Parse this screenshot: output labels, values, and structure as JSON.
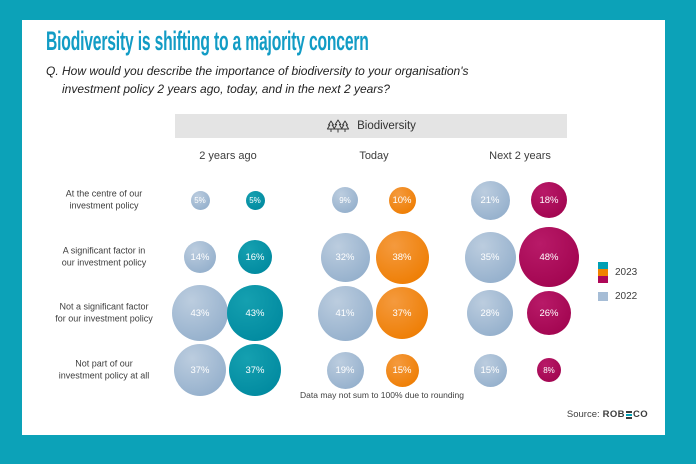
{
  "title": "Biodiversity is shifting to a majority concern",
  "question": {
    "line1": "Q. How would you describe the importance of biodiversity to your organisation's",
    "line2": "investment policy 2 years ago, today, and in the next 2 years?"
  },
  "colors": {
    "frame": "#0ca2b8",
    "title_text": "#129cc5",
    "header_bar_bg": "#e4e4e4",
    "c2022_light": "#bccddf",
    "c2022_dark": "#92aecb",
    "c2023_by_column_light": [
      "#15a0b0",
      "#f49a3e",
      "#b81a68"
    ],
    "c2023_by_column_dark": [
      "#00899f",
      "#ee7c00",
      "#a1044f"
    ]
  },
  "chart_data": {
    "type": "bubble",
    "title": "Biodiversity",
    "columns": [
      "2 years ago",
      "Today",
      "Next 2 years"
    ],
    "row_labels": [
      [
        "At the centre of our",
        "investment policy"
      ],
      [
        "A significant factor in",
        "our investment policy"
      ],
      [
        "Not a significant factor",
        "for our investment policy"
      ],
      [
        "Not part of our",
        "investment policy at all"
      ]
    ],
    "unit": "%",
    "series": [
      {
        "name": "2022",
        "values_by_row": [
          [
            5,
            9,
            21
          ],
          [
            14,
            32,
            35
          ],
          [
            43,
            41,
            28
          ],
          [
            37,
            19,
            15
          ]
        ]
      },
      {
        "name": "2023",
        "values_by_row": [
          [
            5,
            10,
            18
          ],
          [
            16,
            38,
            48
          ],
          [
            43,
            37,
            26
          ],
          [
            37,
            15,
            8
          ]
        ]
      }
    ],
    "note": "Data may not sum to 100% due to rounding"
  },
  "legend": {
    "items": [
      {
        "label": "2023",
        "swatches": [
          "#00a0b4",
          "#f08100",
          "#ae0758"
        ]
      },
      {
        "label": "2022",
        "swatches": [
          "#a6bdd6"
        ]
      }
    ]
  },
  "footer": {
    "source_prefix": "Source:",
    "brand_pre": "ROB",
    "brand_post": "CO"
  }
}
